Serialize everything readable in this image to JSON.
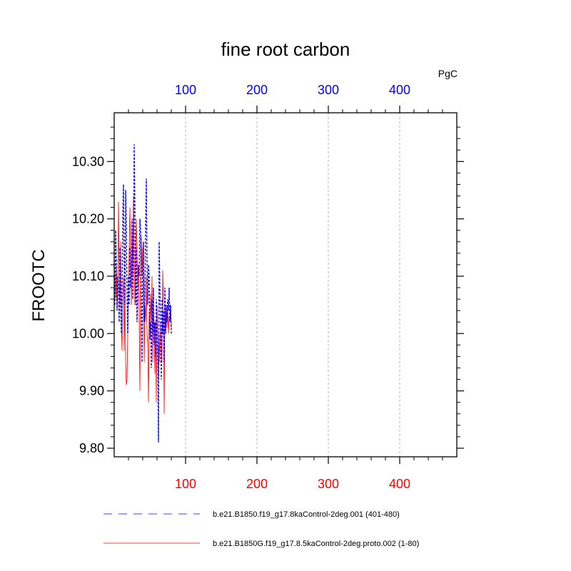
{
  "chart_data": {
    "type": "line",
    "title": "fine root carbon",
    "units": "PgC",
    "ylabel": "FROOTC",
    "xlabel": "",
    "xlim": [
      0,
      480
    ],
    "ylim": [
      9.785,
      10.385
    ],
    "yticks": [
      9.8,
      9.9,
      10.0,
      10.1,
      10.2,
      10.3
    ],
    "ytick_labels": [
      "9.80",
      "9.90",
      "10.00",
      "10.10",
      "10.20",
      "10.30"
    ],
    "xticks": [
      100,
      200,
      300,
      400
    ],
    "xtick_labels_bottom": [
      "100",
      "200",
      "300",
      "400"
    ],
    "xtick_labels_top": [
      "100",
      "200",
      "300",
      "400"
    ],
    "bottom_tick_color": "#ff0000",
    "top_tick_color": "#0000ff",
    "grid": "vertical dashed at major x ticks",
    "legend_position": "bottom",
    "series": [
      {
        "name": "b.e21.B1850.f19_g17.8kaControl-2deg.001 (401-480)",
        "color": "#0000ff",
        "style": "dashed",
        "x": [
          1,
          2,
          3,
          4,
          5,
          6,
          7,
          8,
          9,
          10,
          11,
          12,
          13,
          14,
          15,
          16,
          17,
          18,
          19,
          20,
          21,
          22,
          23,
          24,
          25,
          26,
          27,
          28,
          29,
          30,
          31,
          32,
          33,
          34,
          35,
          36,
          37,
          38,
          39,
          40,
          41,
          42,
          43,
          44,
          45,
          46,
          47,
          48,
          49,
          50,
          51,
          52,
          53,
          54,
          55,
          56,
          57,
          58,
          59,
          60,
          61,
          62,
          63,
          64,
          65,
          66,
          67,
          68,
          69,
          70,
          71,
          72,
          73,
          74,
          75,
          76,
          77,
          78,
          79,
          80
        ],
        "values": [
          10.05,
          10.18,
          10.12,
          10.04,
          10.1,
          10.08,
          10.02,
          10.15,
          10.06,
          10.0,
          10.08,
          10.2,
          10.26,
          10.12,
          10.05,
          10.25,
          10.18,
          10.06,
          10.0,
          10.1,
          10.05,
          10.15,
          10.08,
          10.1,
          10.2,
          10.06,
          10.12,
          10.33,
          10.22,
          10.05,
          10.15,
          10.02,
          10.08,
          10.12,
          10.1,
          10.2,
          10.18,
          10.05,
          9.95,
          10.1,
          10.16,
          10.02,
          10.08,
          10.18,
          10.27,
          10.12,
          10.05,
          10.12,
          10.1,
          9.99,
          10.02,
          9.94,
          10.06,
          10.0,
          10.08,
          9.98,
          10.02,
          9.96,
          10.06,
          10.0,
          9.96,
          9.81,
          10.16,
          10.08,
          10.02,
          9.92,
          10.06,
          10.0,
          10.04,
          9.95,
          10.08,
          10.0,
          10.05,
          10.02,
          10.06,
          10.04,
          10.08,
          10.02,
          10.05,
          10.0
        ]
      },
      {
        "name": "b.e21.B1850G.f19_g17.8.5kaControl-2deg.proto.002 (1-80)",
        "color": "#ff0000",
        "style": "solid",
        "x": [
          1,
          2,
          3,
          4,
          5,
          6,
          7,
          8,
          9,
          10,
          11,
          12,
          13,
          14,
          15,
          16,
          17,
          18,
          19,
          20,
          21,
          22,
          23,
          24,
          25,
          26,
          27,
          28,
          29,
          30,
          31,
          32,
          33,
          34,
          35,
          36,
          37,
          38,
          39,
          40,
          41,
          42,
          43,
          44,
          45,
          46,
          47,
          48,
          49,
          50,
          51,
          52,
          53,
          54,
          55,
          56,
          57,
          58,
          59,
          60,
          61,
          62,
          63,
          64,
          65,
          66,
          67,
          68,
          69,
          70,
          71,
          72,
          73,
          74,
          75,
          76,
          77,
          78,
          79,
          80
        ],
        "values": [
          10.1,
          10.06,
          10.12,
          10.04,
          10.08,
          10.23,
          10.1,
          10.05,
          10.16,
          10.02,
          9.97,
          10.06,
          10.1,
          9.97,
          10.08,
          9.95,
          9.91,
          9.92,
          10.0,
          10.08,
          10.15,
          10.22,
          10.12,
          10.05,
          10.18,
          10.1,
          10.24,
          10.14,
          10.05,
          10.1,
          10.2,
          10.15,
          10.08,
          10.12,
          10.02,
          9.9,
          10.1,
          10.17,
          10.1,
          10.15,
          10.08,
          9.95,
          10.05,
          10.02,
          10.1,
          10.0,
          9.98,
          9.88,
          10.04,
          10.0,
          10.07,
          10.02,
          10.1,
          9.95,
          10.05,
          10.0,
          9.93,
          10.02,
          9.88,
          10.05,
          10.0,
          9.92,
          10.0,
          9.95,
          10.02,
          9.98,
          9.95,
          10.11,
          10.04,
          9.86,
          10.05,
          10.0,
          10.04,
          10.01,
          10.05,
          10.0,
          10.03,
          10.02,
          10.05,
          10.01
        ]
      }
    ]
  }
}
